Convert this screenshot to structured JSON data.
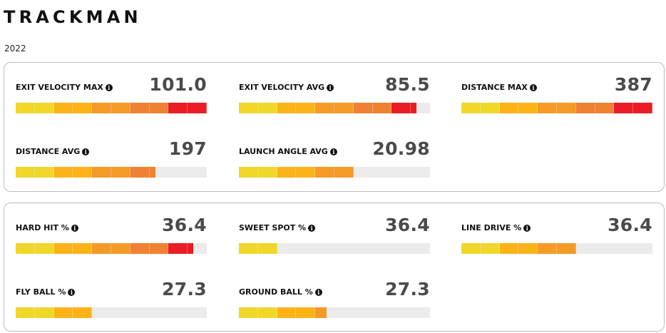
{
  "brand": {
    "logo_text": "TRACKMAN"
  },
  "year": "2022",
  "colors": {
    "bar_empty": "#ebebeb",
    "segments": [
      "#f0d72a",
      "#f0d72a",
      "#fbb317",
      "#fbb317",
      "#f59a26",
      "#f59a26",
      "#ef8133",
      "#ef8133",
      "#ea1c26",
      "#ea1c26"
    ]
  },
  "panels": [
    {
      "metrics": [
        {
          "label": "EXIT VELOCITY MAX",
          "value": "101.0",
          "fill": 1.0
        },
        {
          "label": "EXIT VELOCITY AVG",
          "value": "85.5",
          "fill": 0.93
        },
        {
          "label": "DISTANCE MAX",
          "value": "387",
          "fill": 1.0
        },
        {
          "label": "DISTANCE AVG",
          "value": "197",
          "fill": 0.73
        },
        {
          "label": "LAUNCH ANGLE AVG",
          "value": "20.98",
          "fill": 0.6
        }
      ]
    },
    {
      "metrics": [
        {
          "label": "HARD HIT %",
          "value": "36.4",
          "fill": 0.93
        },
        {
          "label": "SWEET SPOT %",
          "value": "36.4",
          "fill": 0.2
        },
        {
          "label": "LINE DRIVE %",
          "value": "36.4",
          "fill": 0.6
        },
        {
          "label": "FLY BALL %",
          "value": "27.3",
          "fill": 0.4
        },
        {
          "label": "GROUND BALL %",
          "value": "27.3",
          "fill": 0.46
        }
      ]
    }
  ],
  "info_icon": {
    "name": "info-icon",
    "glyph": "i"
  }
}
